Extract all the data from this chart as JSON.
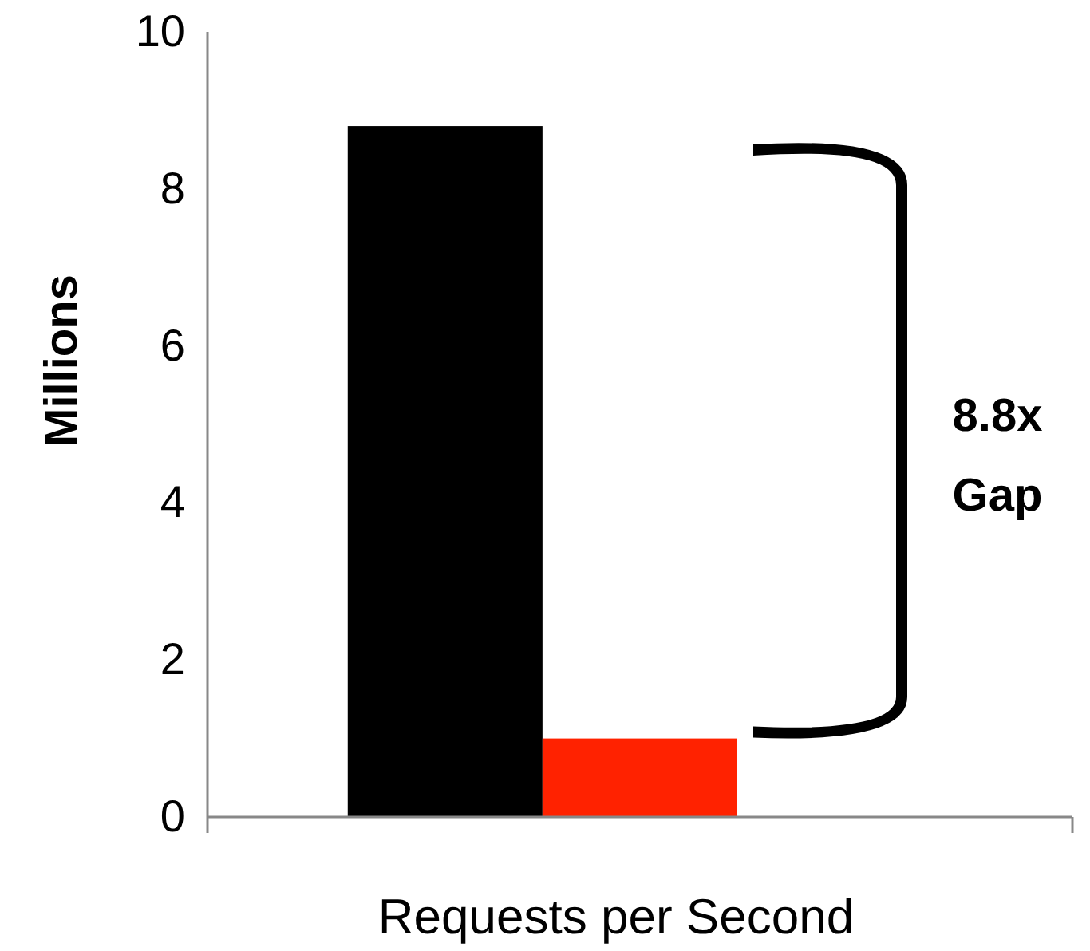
{
  "chart_data": {
    "type": "bar",
    "categories": [
      null
    ],
    "xlabel": "Requests per Second",
    "ylabel": "Millions",
    "series": [
      {
        "color": "#000000",
        "values": [
          8.8
        ]
      },
      {
        "color": "#ff2200",
        "values": [
          1.0
        ]
      }
    ],
    "ylim": [
      0,
      10
    ],
    "yticks": [
      0,
      2,
      4,
      6,
      8,
      10
    ],
    "grid": false,
    "annotations": [
      "8.8x Gap"
    ]
  }
}
